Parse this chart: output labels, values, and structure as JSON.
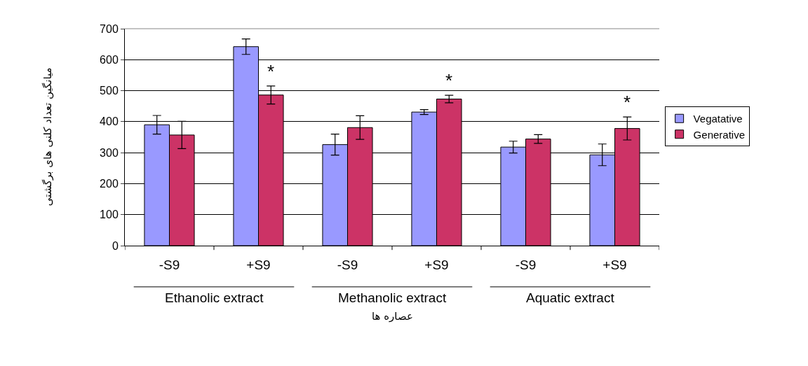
{
  "chart_data": {
    "type": "bar",
    "xlabel": "عصاره ها",
    "ylabel": "میانگین تعداد کلنی های برگشتی",
    "categories": [
      "-S9",
      "+S9",
      "-S9",
      "+S9",
      "-S9",
      "+S9"
    ],
    "series": [
      {
        "name": "Vegatative",
        "color": "#9999ff",
        "values": [
          390,
          642,
          326,
          431,
          318,
          293
        ],
        "errors": [
          30,
          25,
          34,
          8,
          19,
          35
        ]
      },
      {
        "name": "Generative",
        "color": "#cc3366",
        "values": [
          357,
          486,
          381,
          473,
          344,
          378
        ],
        "errors": [
          44,
          29,
          38,
          12,
          14,
          37
        ]
      }
    ],
    "ylim": [
      0,
      700
    ],
    "yticks": [
      0,
      100,
      200,
      300,
      400,
      500,
      600,
      700
    ],
    "grid": "y",
    "legend": "right",
    "annotations": [
      "Ethanolic extract",
      "Methanolic extract",
      "Aquatic extract",
      "*",
      "*",
      "*"
    ]
  }
}
